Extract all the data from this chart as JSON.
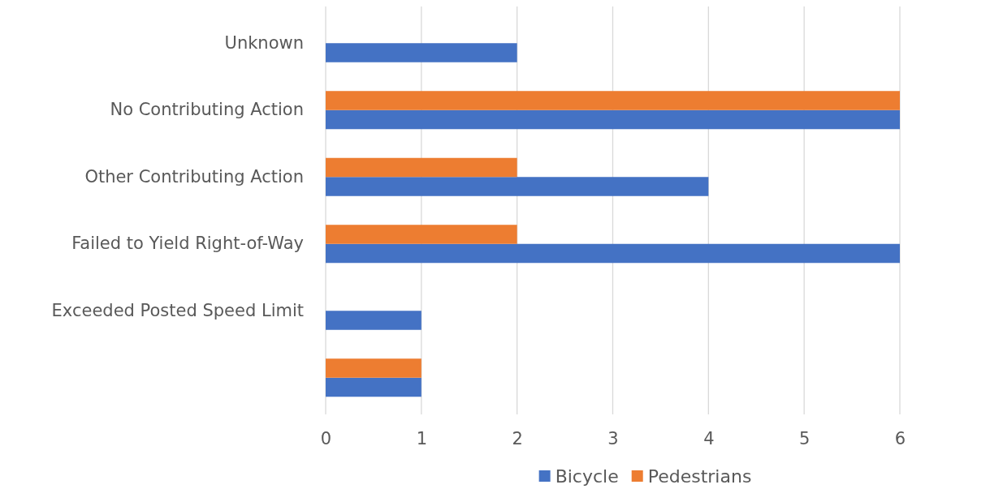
{
  "chart_data": {
    "type": "bar",
    "orientation": "horizontal",
    "categories": [
      "Unknown",
      "No Contributing Action",
      "Other Contributing Action",
      "Failed to Yield Right-of-Way",
      "Exceeded Posted Speed Limit",
      null
    ],
    "series": [
      {
        "name": "Bicycle",
        "color": "#4472c4",
        "values": [
          2,
          6,
          4,
          6,
          1,
          1
        ]
      },
      {
        "name": "Pedestrians",
        "color": "#ed7d31",
        "values": [
          0,
          6,
          2,
          2,
          0,
          1
        ]
      }
    ],
    "xlim": [
      0,
      6
    ],
    "xticks": [
      0,
      1,
      2,
      3,
      4,
      5,
      6
    ],
    "grid": "x",
    "legend": "bottom"
  }
}
